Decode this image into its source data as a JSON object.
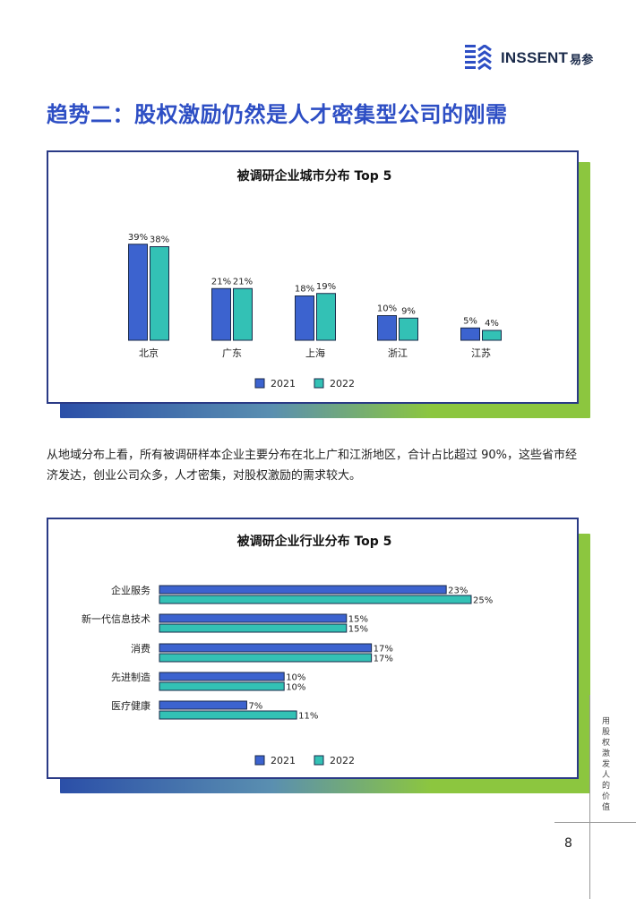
{
  "header": {
    "logo_text": "INSSENT",
    "logo_cn": "易参",
    "brand_color": "#2d4ec4"
  },
  "page_title": "趋势二：股权激励仍然是人才密集型公司的刚需",
  "colors": {
    "series_2021": "#3c63cf",
    "series_2022": "#33c1b5",
    "card_border": "#2a3a86",
    "shadow_left": "#2b4fa8",
    "shadow_right": "#8cc63f"
  },
  "paragraph": "从地域分布上看，所有被调研样本企业主要分布在北上广和江浙地区，合计占比超过 90%，这些省市经济发达，创业公司众多，人才密集，对股权激励的需求较大。",
  "side_text": "用股权激发人的价值",
  "page_number": "8",
  "chart_data": [
    {
      "type": "bar",
      "title": "被调研企业城市分布 Top 5",
      "categories": [
        "北京",
        "广东",
        "上海",
        "浙江",
        "江苏"
      ],
      "series": [
        {
          "name": "2021",
          "values": [
            39,
            21,
            18,
            10,
            5
          ]
        },
        {
          "name": "2022",
          "values": [
            38,
            21,
            19,
            9,
            4
          ]
        }
      ],
      "unit": "%",
      "ylim": [
        0,
        40
      ],
      "grid": false,
      "legend": "bottom-center"
    },
    {
      "type": "bar",
      "orientation": "horizontal",
      "title": "被调研企业行业分布 Top 5",
      "categories": [
        "企业服务",
        "新一代信息技术",
        "消费",
        "先进制造",
        "医疗健康"
      ],
      "series": [
        {
          "name": "2021",
          "values": [
            23,
            15,
            17,
            10,
            7
          ]
        },
        {
          "name": "2022",
          "values": [
            25,
            15,
            17,
            10,
            11
          ]
        }
      ],
      "unit": "%",
      "xlim": [
        0,
        25
      ],
      "grid": false,
      "legend": "bottom-center"
    }
  ]
}
